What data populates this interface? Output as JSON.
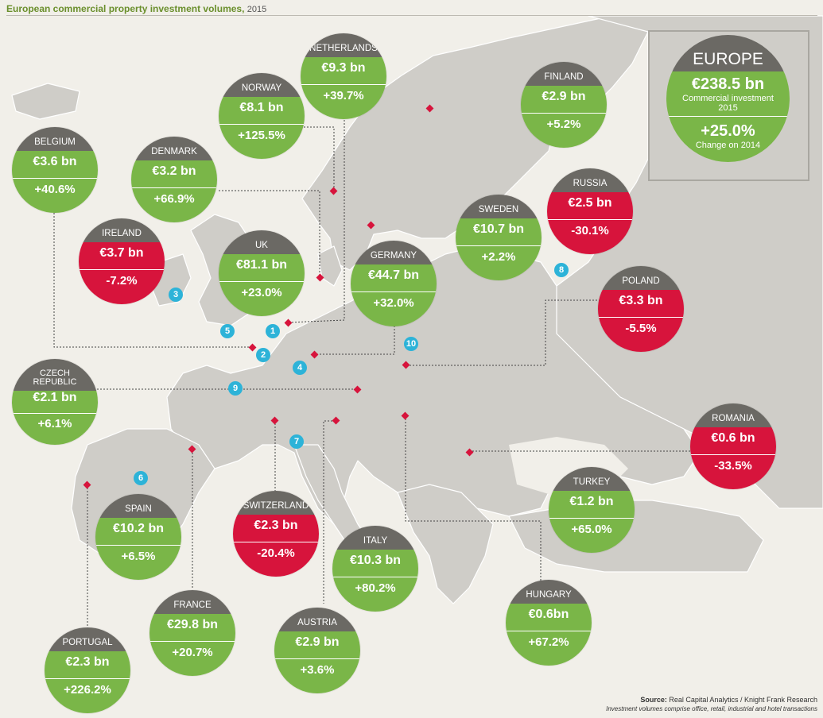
{
  "title": "European commercial property investment volumes,",
  "year": "2015",
  "europe": {
    "label": "EUROPE",
    "value": "€238.5 bn",
    "line1": "Commercial investment",
    "line2": "2015",
    "change": "+25.0%",
    "change_label": "Change on 2014"
  },
  "countries": [
    {
      "name": "NETHERLANDS",
      "value": "€9.3 bn",
      "change": "+39.7%",
      "status": "green"
    },
    {
      "name": "NORWAY",
      "value": "€8.1 bn",
      "change": "+125.5%",
      "status": "green"
    },
    {
      "name": "FINLAND",
      "value": "€2.9 bn",
      "change": "+5.2%",
      "status": "green"
    },
    {
      "name": "BELGIUM",
      "value": "€3.6 bn",
      "change": "+40.6%",
      "status": "green"
    },
    {
      "name": "DENMARK",
      "value": "€3.2 bn",
      "change": "+66.9%",
      "status": "green"
    },
    {
      "name": "RUSSIA",
      "value": "€2.5 bn",
      "change": "-30.1%",
      "status": "red"
    },
    {
      "name": "SWEDEN",
      "value": "€10.7 bn",
      "change": "+2.2%",
      "status": "green"
    },
    {
      "name": "IRELAND",
      "value": "€3.7 bn",
      "change": "-7.2%",
      "status": "red"
    },
    {
      "name": "UK",
      "value": "€81.1 bn",
      "change": "+23.0%",
      "status": "green"
    },
    {
      "name": "GERMANY",
      "value": "€44.7 bn",
      "change": "+32.0%",
      "status": "green"
    },
    {
      "name": "POLAND",
      "value": "€3.3 bn",
      "change": "-5.5%",
      "status": "red"
    },
    {
      "name": "CZECH REPUBLIC",
      "value": "€2.1 bn",
      "change": "+6.1%",
      "status": "green"
    },
    {
      "name": "ROMANIA",
      "value": "€0.6 bn",
      "change": "-33.5%",
      "status": "red"
    },
    {
      "name": "SPAIN",
      "value": "€10.2 bn",
      "change": "+6.5%",
      "status": "green"
    },
    {
      "name": "SWITZERLAND",
      "value": "€2.3 bn",
      "change": "-20.4%",
      "status": "red"
    },
    {
      "name": "TURKEY",
      "value": "€1.2 bn",
      "change": "+65.0%",
      "status": "green"
    },
    {
      "name": "ITALY",
      "value": "€10.3 bn",
      "change": "+80.2%",
      "status": "green"
    },
    {
      "name": "FRANCE",
      "value": "€29.8 bn",
      "change": "+20.7%",
      "status": "green"
    },
    {
      "name": "AUSTRIA",
      "value": "€2.9 bn",
      "change": "+3.6%",
      "status": "green"
    },
    {
      "name": "HUNGARY",
      "value": "€0.6bn",
      "change": "+67.2%",
      "status": "green"
    },
    {
      "name": "PORTUGAL",
      "value": "€2.3 bn",
      "change": "+226.2%",
      "status": "green"
    }
  ],
  "markers": [
    "1",
    "2",
    "3",
    "4",
    "5",
    "6",
    "7",
    "8",
    "9",
    "10"
  ],
  "source_label": "Source:",
  "source": "Real Capital Analytics / Knight Frank Research",
  "note": "Investment volumes comprise office, retail, industrial and hotel transactions",
  "colors": {
    "positive": "#7ab648",
    "negative": "#d7143c",
    "header": "#6b6964",
    "marker": "#2db3d8",
    "diamond": "#d7143c",
    "land": "#cfcdc8",
    "sea": "#f1efe9"
  }
}
